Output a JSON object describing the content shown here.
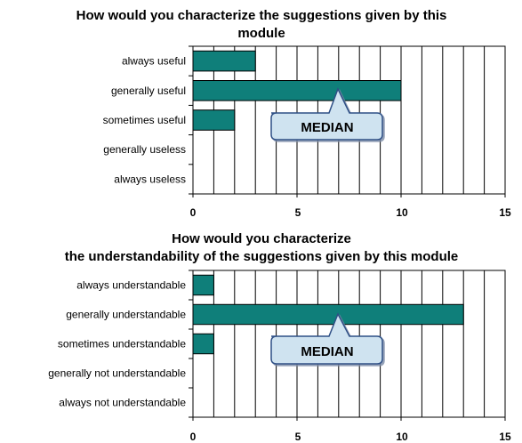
{
  "chart_data": [
    {
      "type": "bar",
      "orientation": "horizontal",
      "title_lines": [
        "How would you characterize the suggestions given by this",
        "module"
      ],
      "categories": [
        "always useful",
        "generally useful",
        "sometimes useful",
        "generally useless",
        "always useless"
      ],
      "values": [
        3,
        10,
        2,
        0,
        0
      ],
      "xlim": [
        0,
        15
      ],
      "x_tick_labels": [
        "0",
        "5",
        "10",
        "15"
      ],
      "grid": "vertical every 1",
      "bar_color": "#0f7f7a",
      "annotation": {
        "text": "MEDIAN",
        "points_to": "generally useful"
      }
    },
    {
      "type": "bar",
      "orientation": "horizontal",
      "title_lines": [
        "How would you characterize",
        "the understandability of the suggestions given by this module"
      ],
      "categories": [
        "always understandable",
        "generally understandable",
        "sometimes understandable",
        "generally not understandable",
        "always not understandable"
      ],
      "values": [
        1,
        13,
        1,
        0,
        0
      ],
      "xlim": [
        0,
        15
      ],
      "x_tick_labels": [
        "0",
        "5",
        "10",
        "15"
      ],
      "grid": "vertical every 1",
      "bar_color": "#0f7f7a",
      "annotation": {
        "text": "MEDIAN",
        "points_to": "generally understandable"
      }
    }
  ],
  "colors": {
    "bar_fill": "#0f7f7a",
    "callout_fill": "#cfe3f0",
    "callout_stroke": "#2d4f86"
  }
}
